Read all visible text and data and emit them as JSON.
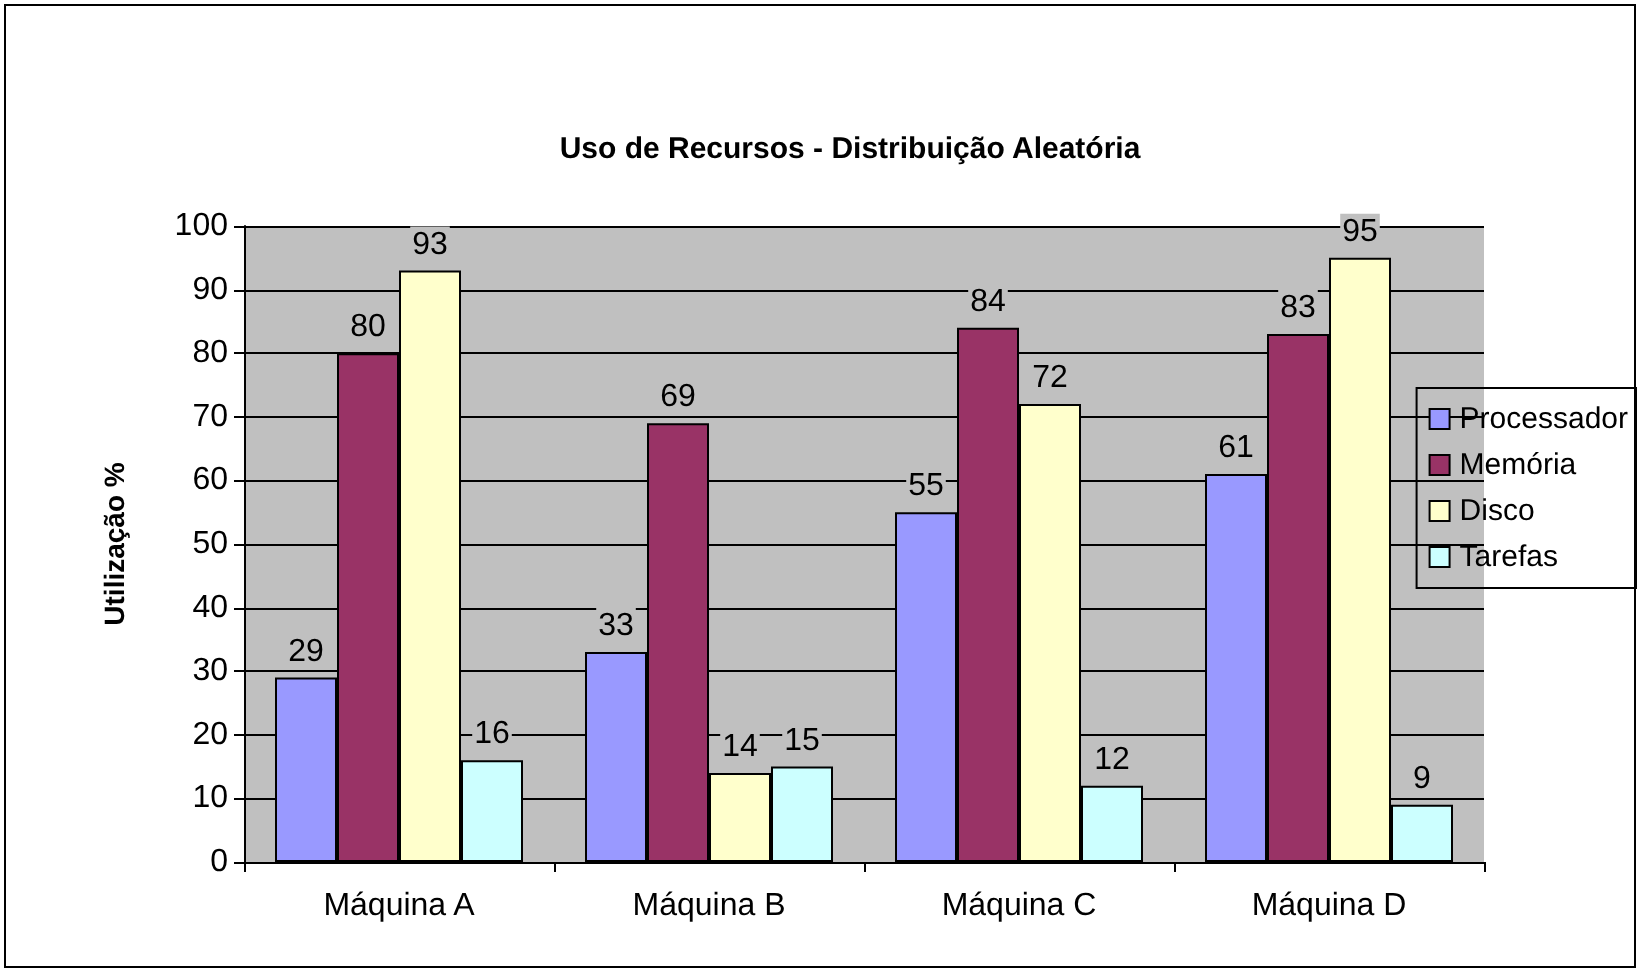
{
  "chart_data": {
    "type": "bar",
    "title": "Uso de Recursos - Distribuição Aleatória",
    "ylabel": "Utilização %",
    "categories": [
      "Máquina A",
      "Máquina B",
      "Máquina C",
      "Máquina D"
    ],
    "series": [
      {
        "name": "Processador",
        "color": "#9999ff",
        "values": [
          29,
          33,
          55,
          61
        ]
      },
      {
        "name": "Memória",
        "color": "#993366",
        "values": [
          80,
          69,
          84,
          83
        ]
      },
      {
        "name": "Disco",
        "color": "#ffffcc",
        "values": [
          93,
          14,
          72,
          95
        ]
      },
      {
        "name": "Tarefas",
        "color": "#ccffff",
        "values": [
          16,
          15,
          12,
          9
        ]
      }
    ],
    "ylim": [
      0,
      100
    ],
    "yticks": [
      0,
      10,
      20,
      30,
      40,
      50,
      60,
      70,
      80,
      90,
      100
    ],
    "grid": "y",
    "legend": "right",
    "data_labels": true
  }
}
